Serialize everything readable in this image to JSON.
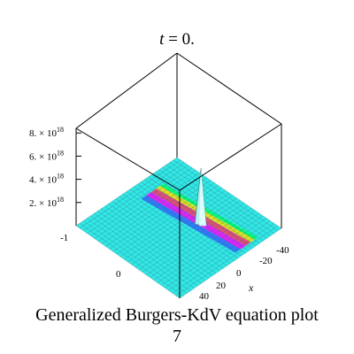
{
  "chart_data": {
    "type": "surface3d",
    "title_var": "t",
    "title_rest": " = 0.",
    "caption_line1": "Generalized  Burgers-KdV equation plot",
    "caption_line2": "7",
    "x_axis_label": "x",
    "z_ticks": [
      {
        "mant": "2.",
        "exp": "18",
        "value": 2e+18
      },
      {
        "mant": "4.",
        "exp": "18",
        "value": 4e+18
      },
      {
        "mant": "6.",
        "exp": "18",
        "value": 6e+18
      },
      {
        "mant": "8.",
        "exp": "18",
        "value": 8e+18
      }
    ],
    "x_ticks": [
      "-40",
      "-20",
      "0",
      "20",
      "40"
    ],
    "y_ticks": [
      "-1",
      "0"
    ],
    "peak_value": 8e+18,
    "colors": {
      "surface": "#33e6e6",
      "mesh": "#1e6f6f",
      "band_colors": [
        "#ff3366",
        "#ffdd00",
        "#ff00ff",
        "#3366ff",
        "#00ff66"
      ]
    }
  }
}
